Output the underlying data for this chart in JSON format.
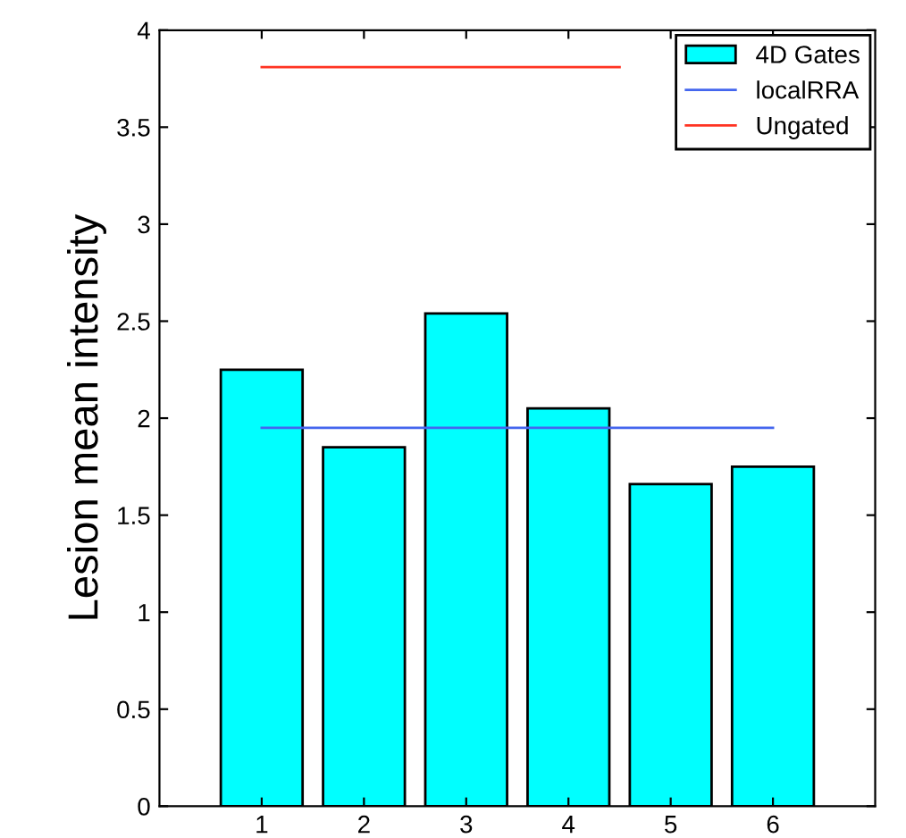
{
  "chart_data": {
    "type": "bar",
    "ylabel": "Lesion mean intensity",
    "x": [
      1,
      2,
      3,
      4,
      5,
      6
    ],
    "series": [
      {
        "name": "4D Gates",
        "color": "#00ffff",
        "values": [
          2.25,
          1.85,
          2.54,
          2.05,
          1.66,
          1.75
        ]
      },
      {
        "name": "localRRA",
        "type": "line",
        "color": "#4466ee",
        "x": [
          1,
          6
        ],
        "values": [
          1.95,
          1.95
        ]
      },
      {
        "name": "Ungated",
        "type": "line",
        "color": "#ff3322",
        "x": [
          1,
          4.5
        ],
        "values": [
          3.81,
          3.81
        ]
      }
    ],
    "xlim": [
      0,
      7
    ],
    "xticks": [
      1,
      2,
      3,
      4,
      5,
      6
    ],
    "ylim": [
      0,
      4
    ],
    "yticks": [
      0,
      0.5,
      1,
      1.5,
      2,
      2.5,
      3,
      3.5,
      4
    ],
    "grid": false,
    "legend": "top right",
    "line_style": "solid"
  }
}
